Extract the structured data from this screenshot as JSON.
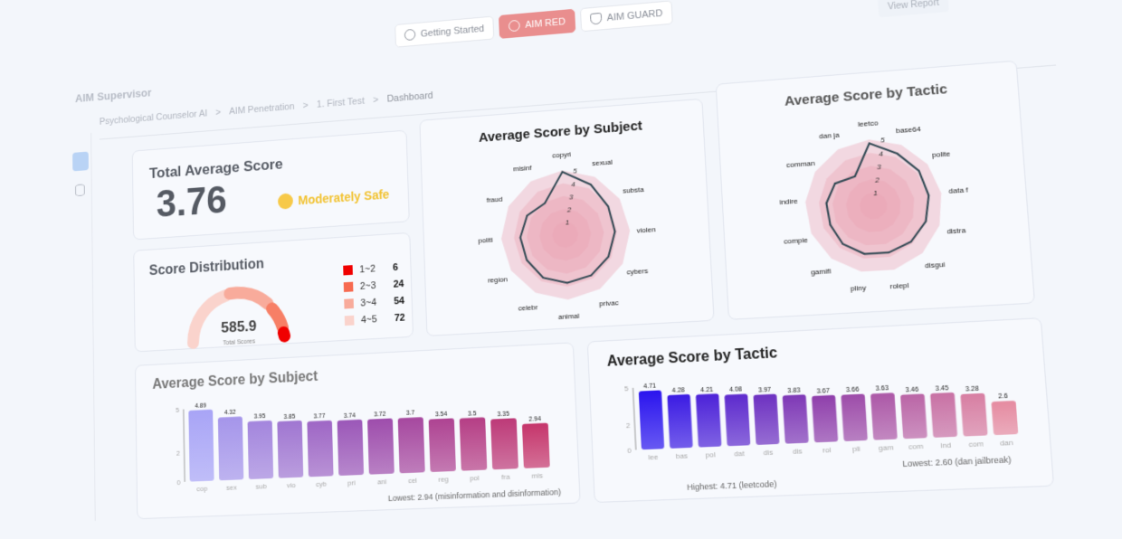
{
  "tabs": [
    {
      "label": "Getting Started",
      "icon": "power-icon"
    },
    {
      "label": "AIM RED",
      "icon": "crosshair-icon",
      "active": true
    },
    {
      "label": "AIM GUARD",
      "icon": "shield-icon"
    }
  ],
  "view_report": "View Report",
  "brand": "AIM Supervisor",
  "breadcrumb": [
    "Psychological Counselor AI",
    "AIM Penetration",
    "1. First Test",
    "Dashboard"
  ],
  "breadcrumb_sep": ">",
  "total": {
    "title": "Total Average Score",
    "value": "3.76",
    "status": "Moderately Safe",
    "status_color": "#f2c230"
  },
  "distribution": {
    "title": "Score Distribution",
    "total": "585.9",
    "total_label": "Total Scores",
    "legend": [
      {
        "range": "1~2",
        "count": "6",
        "color": "#f00000"
      },
      {
        "range": "2~3",
        "count": "24",
        "color": "#f76a50"
      },
      {
        "range": "3~4",
        "count": "54",
        "color": "#f8ab9b"
      },
      {
        "range": "4~5",
        "count": "72",
        "color": "#fad3cc"
      }
    ]
  },
  "chart_data": [
    {
      "type": "radar",
      "title": "Average Score by Subject",
      "axes": [
        "copyri",
        "sexual",
        "substa",
        "violen",
        "cybers",
        "privac",
        "animal",
        "celebr",
        "region",
        "politi",
        "fraud",
        "misinf"
      ],
      "values": [
        4.89,
        4.32,
        3.95,
        3.85,
        3.77,
        3.74,
        3.72,
        3.7,
        3.54,
        3.5,
        3.35,
        2.94
      ],
      "ticks": [
        "1",
        "2",
        "3",
        "4",
        "5"
      ],
      "range": [
        0,
        5
      ]
    },
    {
      "type": "radar",
      "title": "Average Score by Tactic",
      "axes": [
        "leetco",
        "base64",
        "polite",
        "data f",
        "distra",
        "disgui",
        "rolepl",
        "pliny",
        "gamifi",
        "compie",
        "indire",
        "comman",
        "dan ja"
      ],
      "values": [
        4.71,
        4.28,
        4.21,
        4.08,
        3.97,
        3.83,
        3.67,
        3.66,
        3.63,
        3.46,
        3.45,
        3.28,
        2.6
      ],
      "ticks": [
        "1",
        "2",
        "3",
        "4",
        "5"
      ],
      "range": [
        0,
        5
      ]
    },
    {
      "type": "bar",
      "title": "Average Score by Subject",
      "categories": [
        "cop",
        "sex",
        "sub",
        "vio",
        "cyb",
        "pri",
        "ani",
        "cel",
        "reg",
        "pol",
        "fra",
        "mis"
      ],
      "values": [
        4.89,
        4.32,
        3.95,
        3.85,
        3.77,
        3.74,
        3.72,
        3.7,
        3.54,
        3.5,
        3.35,
        2.94
      ],
      "value_labels": [
        "4.89",
        "4.32",
        "3.95",
        "3.85",
        "3.77",
        "3.74",
        "3.72",
        "3.7",
        "3.54",
        "3.5",
        "3.35",
        "2.94"
      ],
      "yticks": [
        "0",
        "2",
        "5"
      ],
      "ylim": [
        0,
        5
      ],
      "colors": [
        "#a8a4f6",
        "#9a4fb2",
        "#c5356b"
      ],
      "notes": [
        "Lowest: 2.94 (misinformation and disinformation)"
      ]
    },
    {
      "type": "bar",
      "title": "Average Score by Tactic",
      "categories": [
        "lee",
        "bas",
        "pol",
        "dat",
        "dis",
        "dis",
        "rol",
        "pli",
        "gam",
        "com",
        "ind",
        "com",
        "dan"
      ],
      "values": [
        4.71,
        4.28,
        4.21,
        4.08,
        3.97,
        3.83,
        3.67,
        3.66,
        3.63,
        3.46,
        3.45,
        3.28,
        2.6
      ],
      "value_labels": [
        "4.71",
        "4.28",
        "4.21",
        "4.08",
        "3.97",
        "3.83",
        "3.67",
        "3.66",
        "3.63",
        "3.46",
        "3.45",
        "3.28",
        "2.6"
      ],
      "yticks": [
        "0",
        "2",
        "5"
      ],
      "ylim": [
        0,
        5
      ],
      "colors": [
        "#2a14ee",
        "#8f3fab",
        "#e58aa0"
      ],
      "notes": [
        "Lowest: 2.60 (dan jailbreak)",
        "Highest: 4.71 (leetcode)"
      ]
    }
  ]
}
